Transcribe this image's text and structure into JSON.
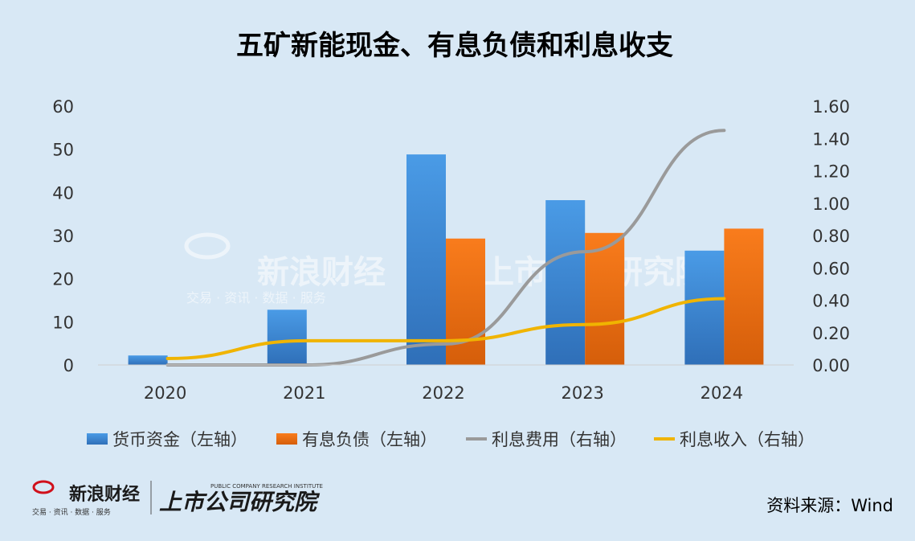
{
  "chart_data": {
    "type": "bar",
    "title": "五矿新能现金、有息负债和利息收支",
    "categories": [
      "2020",
      "2021",
      "2022",
      "2023",
      "2024"
    ],
    "series": [
      {
        "name": "货币资金（左轴）",
        "kind": "bar",
        "axis": "left",
        "color": "#3a87d8",
        "values": [
          2.2,
          12.8,
          48.8,
          38.2,
          26.5
        ]
      },
      {
        "name": "有息负债（左轴）",
        "kind": "bar",
        "axis": "left",
        "color": "#f07214",
        "values": [
          0,
          0,
          29.3,
          30.6,
          31.6
        ]
      },
      {
        "name": "利息费用（右轴）",
        "kind": "line",
        "axis": "right",
        "color": "#9a9a9a",
        "values": [
          0.0,
          0.0,
          0.13,
          0.7,
          1.45
        ]
      },
      {
        "name": "利息收入（右轴）",
        "kind": "line",
        "axis": "right",
        "color": "#f0b400",
        "values": [
          0.04,
          0.15,
          0.15,
          0.25,
          0.41
        ]
      }
    ],
    "y_left": {
      "min": 0,
      "max": 60,
      "ticks": [
        "0",
        "10",
        "20",
        "30",
        "40",
        "50",
        "60"
      ]
    },
    "y_right": {
      "min": 0,
      "max": 1.6,
      "ticks": [
        "0.00",
        "0.20",
        "0.40",
        "0.60",
        "0.80",
        "1.00",
        "1.20",
        "1.40",
        "1.60"
      ]
    },
    "grid": false,
    "legend_position": "bottom"
  },
  "source": "资料来源：Wind",
  "watermark": {
    "sina_text": "新浪财经",
    "sina_sub": "交易 · 资讯 · 数据 · 服务",
    "institute_text": "上市公司研究院",
    "institute_en": "PUBLIC COMPANY RESEARCH INSTITUTE"
  },
  "colors": {
    "background": "#d8e8f5",
    "bar_blue": "#3a87d8",
    "bar_orange": "#f07214",
    "line_gray": "#9a9a9a",
    "line_yellow": "#f0b400"
  }
}
